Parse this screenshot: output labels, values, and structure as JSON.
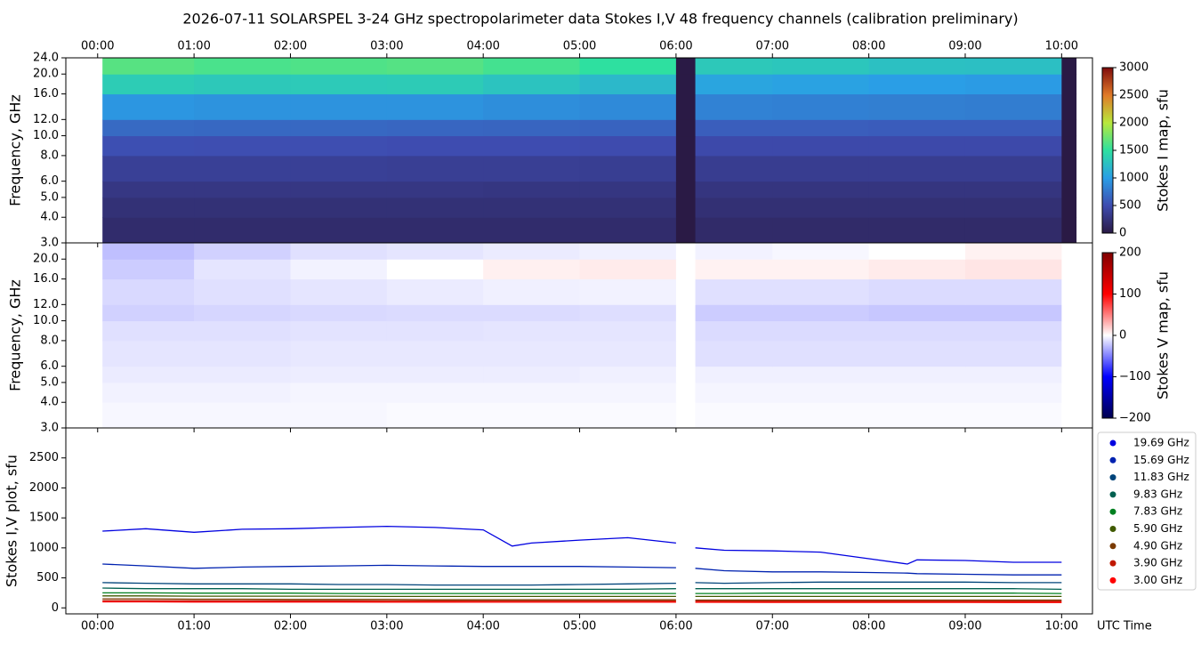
{
  "chart_data": [
    {
      "type": "heatmap",
      "title": "2026-07-11  SOLARSPEL  3-24 GHz spectropolarimeter data   Stokes I,V   48 frequency channels   (calibration preliminary)",
      "ylabel": "Frequency, GHz",
      "colorbar_label": "Stokes I map, sfu",
      "xlim": [
        -0.33,
        10.32
      ],
      "xticks": [
        {
          "value": 0,
          "label": "00:00"
        },
        {
          "value": 1,
          "label": "01:00"
        },
        {
          "value": 2,
          "label": "02:00"
        },
        {
          "value": 3,
          "label": "03:00"
        },
        {
          "value": 4,
          "label": "04:00"
        },
        {
          "value": 5,
          "label": "05:00"
        },
        {
          "value": 6,
          "label": "06:00"
        },
        {
          "value": 7,
          "label": "07:00"
        },
        {
          "value": 8,
          "label": "08:00"
        },
        {
          "value": 9,
          "label": "09:00"
        },
        {
          "value": 10,
          "label": "10:00"
        }
      ],
      "ylim": [
        3,
        24
      ],
      "log_y": true,
      "yticks": [
        {
          "value": 3,
          "label": "3.0"
        },
        {
          "value": 4,
          "label": "4.0"
        },
        {
          "value": 5,
          "label": "5.0"
        },
        {
          "value": 6,
          "label": "6.0"
        },
        {
          "value": 8,
          "label": "8.0"
        },
        {
          "value": 10,
          "label": "10.0"
        },
        {
          "value": 12,
          "label": "12.0"
        },
        {
          "value": 16,
          "label": "16.0"
        },
        {
          "value": 20,
          "label": "20.0"
        },
        {
          "value": 24,
          "label": "24.0"
        }
      ],
      "clim": [
        0,
        3000
      ],
      "cticks": [
        0,
        500,
        1000,
        1500,
        2000,
        2500,
        3000
      ],
      "colormap": [
        "#2a1a45",
        "#3e4cb0",
        "#2a9ee6",
        "#2ee0a0",
        "#b8e83c",
        "#e07a28",
        "#7f0c0c"
      ],
      "x_edges": [
        0.05,
        1,
        2,
        3,
        4,
        5,
        6.0,
        6.2,
        7,
        8,
        9,
        10.0,
        10.15
      ],
      "y_edges": [
        3,
        4,
        5,
        6,
        8,
        10,
        12,
        16,
        20,
        24
      ],
      "values": [
        [
          180,
          180,
          180,
          180,
          180,
          180,
          0,
          170,
          170,
          170,
          170,
          0
        ],
        [
          230,
          230,
          230,
          230,
          230,
          230,
          0,
          220,
          220,
          220,
          220,
          0
        ],
        [
          290,
          290,
          290,
          290,
          280,
          280,
          0,
          270,
          270,
          270,
          270,
          0
        ],
        [
          380,
          380,
          380,
          370,
          370,
          360,
          0,
          350,
          350,
          350,
          350,
          0
        ],
        [
          520,
          510,
          510,
          500,
          500,
          490,
          0,
          470,
          470,
          470,
          470,
          0
        ],
        [
          680,
          670,
          670,
          660,
          650,
          640,
          0,
          610,
          610,
          600,
          600,
          0
        ],
        [
          950,
          930,
          930,
          930,
          900,
          880,
          0,
          830,
          820,
          810,
          800,
          0
        ],
        [
          1350,
          1320,
          1330,
          1340,
          1280,
          1200,
          0,
          1050,
          1030,
          1000,
          980,
          0
        ],
        [
          1650,
          1600,
          1620,
          1640,
          1580,
          1500,
          0,
          1320,
          1300,
          1260,
          1250,
          0
        ]
      ]
    },
    {
      "type": "heatmap",
      "ylabel": "Frequency, GHz",
      "colorbar_label": "Stokes V map, sfu",
      "xlim": [
        -0.33,
        10.32
      ],
      "xticks": [
        0,
        1,
        2,
        3,
        4,
        5,
        6,
        7,
        8,
        9,
        10
      ],
      "ylim": [
        3,
        24
      ],
      "log_y": true,
      "yticks": [
        {
          "value": 3,
          "label": "3.0"
        },
        {
          "value": 4,
          "label": "4.0"
        },
        {
          "value": 5,
          "label": "5.0"
        },
        {
          "value": 6,
          "label": "6.0"
        },
        {
          "value": 8,
          "label": "8.0"
        },
        {
          "value": 10,
          "label": "10.0"
        },
        {
          "value": 12,
          "label": "12.0"
        },
        {
          "value": 16,
          "label": "16.0"
        },
        {
          "value": 20,
          "label": "20.0"
        }
      ],
      "clim": [
        -200,
        200
      ],
      "cticks": [
        {
          "value": -200,
          "label": "−200"
        },
        {
          "value": -100,
          "label": "−100"
        },
        0,
        100,
        200
      ],
      "colormap": [
        "#000050",
        "#0000ff",
        "#ffffff",
        "#ff0000",
        "#800000"
      ],
      "x_edges": [
        0.05,
        1,
        2,
        3,
        4,
        5,
        6.0,
        6.2,
        7,
        8,
        9,
        10.0,
        10.15
      ],
      "y_edges": [
        3,
        4,
        5,
        6,
        8,
        10,
        12,
        16,
        20,
        24
      ],
      "values": [
        [
          -3,
          -3,
          -3,
          -2,
          -2,
          -2,
          0,
          -2,
          -2,
          -2,
          -2,
          0
        ],
        [
          -5,
          -5,
          -4,
          -4,
          -4,
          -4,
          0,
          -4,
          -4,
          -4,
          -4,
          0
        ],
        [
          -8,
          -8,
          -7,
          -7,
          -7,
          -6,
          0,
          -6,
          -6,
          -6,
          -6,
          0
        ],
        [
          -10,
          -10,
          -9,
          -9,
          -9,
          -9,
          0,
          -12,
          -12,
          -12,
          -12,
          0
        ],
        [
          -12,
          -12,
          -11,
          -11,
          -10,
          -10,
          0,
          -14,
          -14,
          -14,
          -14,
          0
        ],
        [
          -18,
          -16,
          -15,
          -14,
          -14,
          -13,
          0,
          -20,
          -20,
          -22,
          -22,
          0
        ],
        [
          -15,
          -12,
          -10,
          -8,
          -6,
          -5,
          0,
          -12,
          -12,
          -14,
          -14,
          0
        ],
        [
          -20,
          -10,
          -5,
          0,
          6,
          8,
          0,
          5,
          5,
          8,
          10,
          0
        ],
        [
          -25,
          -18,
          -12,
          -10,
          -8,
          -6,
          0,
          -5,
          -3,
          0,
          5,
          0
        ]
      ]
    },
    {
      "type": "line",
      "ylabel": "Stokes I,V plot, sfu",
      "xlabel": "UTC Time",
      "xlim": [
        -0.33,
        10.32
      ],
      "xticks": [
        {
          "value": 0,
          "label": "00:00"
        },
        {
          "value": 1,
          "label": "01:00"
        },
        {
          "value": 2,
          "label": "02:00"
        },
        {
          "value": 3,
          "label": "03:00"
        },
        {
          "value": 4,
          "label": "04:00"
        },
        {
          "value": 5,
          "label": "05:00"
        },
        {
          "value": 6,
          "label": "06:00"
        },
        {
          "value": 7,
          "label": "07:00"
        },
        {
          "value": 8,
          "label": "08:00"
        },
        {
          "value": 9,
          "label": "09:00"
        },
        {
          "value": 10,
          "label": "10:00"
        }
      ],
      "ylim": [
        -100,
        3000
      ],
      "yticks": [
        0,
        500,
        1000,
        1500,
        2000,
        2500
      ],
      "x": [
        0.05,
        0.5,
        1,
        1.5,
        2,
        2.5,
        3,
        3.5,
        4,
        4.3,
        4.5,
        5,
        5.5,
        6.0,
        6.1,
        6.2,
        6.5,
        7,
        7.5,
        8,
        8.4,
        8.5,
        9,
        9.5,
        10.0
      ],
      "series": [
        {
          "name": "19.69 GHz",
          "color": "#0000e0",
          "values": [
            1280,
            1320,
            1260,
            1310,
            1320,
            1340,
            1360,
            1340,
            1300,
            1030,
            1080,
            1130,
            1170,
            1080,
            null,
            1000,
            960,
            950,
            930,
            820,
            730,
            800,
            790,
            760,
            760
          ]
        },
        {
          "name": "15.69 GHz",
          "color": "#0022b0",
          "values": [
            730,
            700,
            660,
            680,
            690,
            700,
            710,
            700,
            690,
            690,
            690,
            690,
            680,
            670,
            null,
            660,
            620,
            600,
            600,
            590,
            580,
            570,
            560,
            550,
            550
          ]
        },
        {
          "name": "11.83 GHz",
          "color": "#00447a",
          "values": [
            420,
            410,
            400,
            400,
            400,
            390,
            390,
            380,
            380,
            380,
            380,
            390,
            400,
            410,
            null,
            420,
            410,
            420,
            430,
            430,
            430,
            430,
            430,
            420,
            420
          ]
        },
        {
          "name": "9.83 GHz",
          "color": "#006050",
          "values": [
            330,
            320,
            320,
            320,
            310,
            310,
            310,
            310,
            310,
            310,
            310,
            310,
            310,
            320,
            null,
            320,
            320,
            320,
            320,
            320,
            320,
            320,
            320,
            320,
            310
          ]
        },
        {
          "name": "7.83 GHz",
          "color": "#008020",
          "values": [
            250,
            250,
            245,
            245,
            245,
            240,
            240,
            240,
            240,
            240,
            240,
            240,
            240,
            240,
            null,
            240,
            240,
            245,
            245,
            245,
            245,
            245,
            245,
            245,
            240
          ]
        },
        {
          "name": "5.90 GHz",
          "color": "#405a00",
          "values": [
            200,
            200,
            195,
            195,
            195,
            195,
            190,
            190,
            190,
            190,
            190,
            190,
            190,
            190,
            null,
            190,
            190,
            190,
            190,
            190,
            190,
            190,
            190,
            190,
            190
          ]
        },
        {
          "name": "4.90 GHz",
          "color": "#7a3a00",
          "values": [
            150,
            150,
            145,
            145,
            140,
            140,
            140,
            135,
            135,
            135,
            135,
            135,
            135,
            135,
            null,
            130,
            130,
            130,
            130,
            130,
            130,
            130,
            130,
            130,
            130
          ]
        },
        {
          "name": "3.90 GHz",
          "color": "#c01800",
          "values": [
            120,
            120,
            118,
            118,
            116,
            116,
            115,
            115,
            114,
            114,
            114,
            113,
            113,
            112,
            null,
            112,
            111,
            111,
            110,
            110,
            110,
            110,
            110,
            110,
            110
          ]
        },
        {
          "name": "3.00 GHz",
          "color": "#ff0000",
          "values": [
            100,
            100,
            98,
            98,
            97,
            97,
            96,
            96,
            95,
            95,
            95,
            95,
            94,
            94,
            null,
            93,
            93,
            92,
            92,
            92,
            91,
            91,
            91,
            90,
            90
          ]
        }
      ]
    }
  ]
}
